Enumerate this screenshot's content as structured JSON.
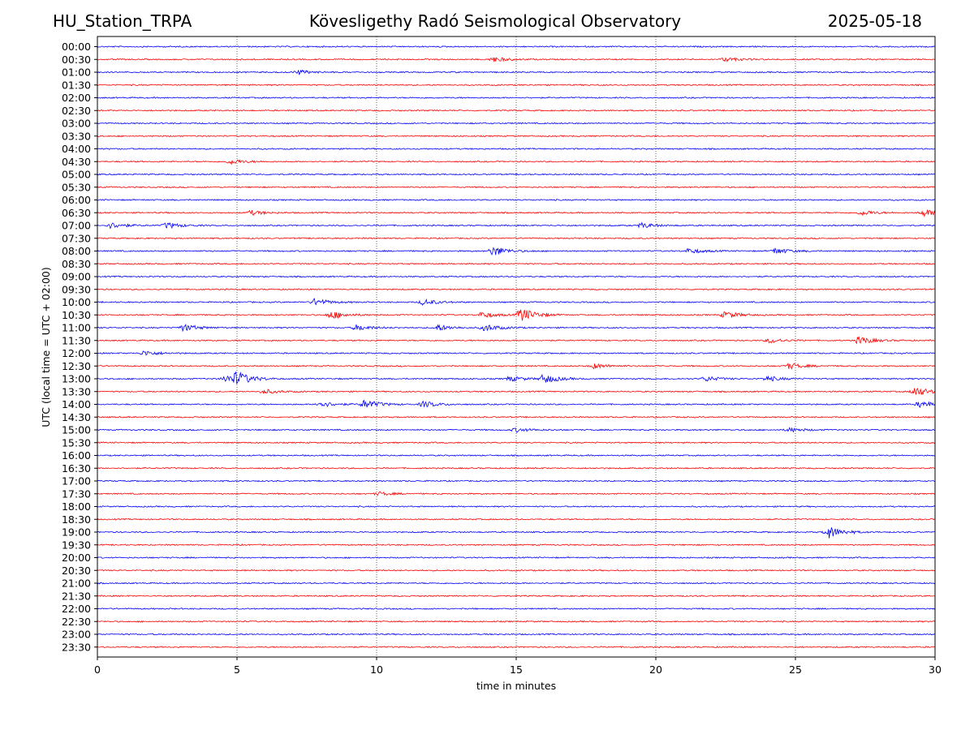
{
  "chart_data": {
    "type": "line",
    "title_left": "HU_Station_TRPA",
    "title_center": "Kövesligethy Radó Seismological Observatory",
    "title_right": "2025-05-18",
    "xlabel": "time in minutes",
    "ylabel": "UTC (local time = UTC + 02:00)",
    "xlim": [
      0,
      30
    ],
    "x_ticks": [
      "0",
      "5",
      "10",
      "15",
      "20",
      "25",
      "30"
    ],
    "x_tick_values": [
      0,
      5,
      10,
      15,
      20,
      25,
      30
    ],
    "grid": "vertical dotted at x ticks",
    "trace_colors": [
      "#0000ff",
      "#ff0000"
    ],
    "rows": [
      "00:00",
      "00:30",
      "01:00",
      "01:30",
      "02:00",
      "02:30",
      "03:00",
      "03:30",
      "04:00",
      "04:30",
      "05:00",
      "05:30",
      "06:00",
      "06:30",
      "07:00",
      "07:30",
      "08:00",
      "08:30",
      "09:00",
      "09:30",
      "10:00",
      "10:30",
      "11:00",
      "11:30",
      "12:00",
      "12:30",
      "13:00",
      "13:30",
      "14:00",
      "14:30",
      "15:00",
      "15:30",
      "16:00",
      "16:30",
      "17:00",
      "17:30",
      "18:00",
      "18:30",
      "19:00",
      "19:30",
      "20:00",
      "20:30",
      "21:00",
      "21:30",
      "22:00",
      "22:30",
      "23:00",
      "23:30"
    ],
    "events": [
      {
        "row": "00:30",
        "minute": 14.2,
        "level": 0.5
      },
      {
        "row": "00:30",
        "minute": 22.5,
        "level": 0.4
      },
      {
        "row": "01:00",
        "minute": 7.2,
        "level": 0.4
      },
      {
        "row": "04:30",
        "minute": 4.8,
        "level": 0.5
      },
      {
        "row": "06:30",
        "minute": 5.5,
        "level": 0.45
      },
      {
        "row": "06:30",
        "minute": 27.4,
        "level": 0.5
      },
      {
        "row": "06:30",
        "minute": 29.6,
        "level": 0.7
      },
      {
        "row": "07:00",
        "minute": 0.5,
        "level": 0.6
      },
      {
        "row": "07:00",
        "minute": 2.5,
        "level": 0.6
      },
      {
        "row": "07:00",
        "minute": 19.5,
        "level": 0.5
      },
      {
        "row": "08:00",
        "minute": 14.2,
        "level": 1.0
      },
      {
        "row": "08:00",
        "minute": 21.2,
        "level": 0.5
      },
      {
        "row": "08:00",
        "minute": 24.3,
        "level": 0.6
      },
      {
        "row": "10:00",
        "minute": 7.8,
        "level": 0.7
      },
      {
        "row": "10:00",
        "minute": 11.7,
        "level": 0.6
      },
      {
        "row": "10:30",
        "minute": 8.4,
        "level": 0.8
      },
      {
        "row": "10:30",
        "minute": 13.8,
        "level": 0.6
      },
      {
        "row": "10:30",
        "minute": 15.2,
        "level": 1.4
      },
      {
        "row": "10:30",
        "minute": 22.5,
        "level": 0.7
      },
      {
        "row": "11:00",
        "minute": 3.1,
        "level": 0.7
      },
      {
        "row": "11:00",
        "minute": 9.3,
        "level": 0.6
      },
      {
        "row": "11:00",
        "minute": 12.2,
        "level": 0.6
      },
      {
        "row": "11:00",
        "minute": 13.9,
        "level": 0.7
      },
      {
        "row": "11:30",
        "minute": 24.1,
        "level": 0.5
      },
      {
        "row": "11:30",
        "minute": 27.3,
        "level": 0.8
      },
      {
        "row": "12:00",
        "minute": 1.7,
        "level": 0.5
      },
      {
        "row": "12:30",
        "minute": 17.8,
        "level": 0.5
      },
      {
        "row": "12:30",
        "minute": 24.8,
        "level": 0.6
      },
      {
        "row": "13:00",
        "minute": 4.6,
        "level": 0.7
      },
      {
        "row": "13:00",
        "minute": 5.0,
        "level": 1.3
      },
      {
        "row": "13:00",
        "minute": 14.8,
        "level": 0.5
      },
      {
        "row": "13:00",
        "minute": 16.0,
        "level": 0.9
      },
      {
        "row": "13:00",
        "minute": 21.8,
        "level": 0.5
      },
      {
        "row": "13:00",
        "minute": 24.0,
        "level": 0.5
      },
      {
        "row": "13:30",
        "minute": 6.0,
        "level": 0.45
      },
      {
        "row": "13:30",
        "minute": 29.3,
        "level": 1.0
      },
      {
        "row": "14:00",
        "minute": 8.0,
        "level": 0.6
      },
      {
        "row": "14:00",
        "minute": 9.6,
        "level": 0.9
      },
      {
        "row": "14:00",
        "minute": 11.7,
        "level": 0.6
      },
      {
        "row": "14:00",
        "minute": 29.5,
        "level": 0.7
      },
      {
        "row": "15:00",
        "minute": 15.0,
        "level": 0.4
      },
      {
        "row": "15:00",
        "minute": 24.8,
        "level": 0.4
      },
      {
        "row": "17:30",
        "minute": 10.1,
        "level": 0.35
      },
      {
        "row": "19:00",
        "minute": 26.2,
        "level": 1.2
      }
    ]
  }
}
